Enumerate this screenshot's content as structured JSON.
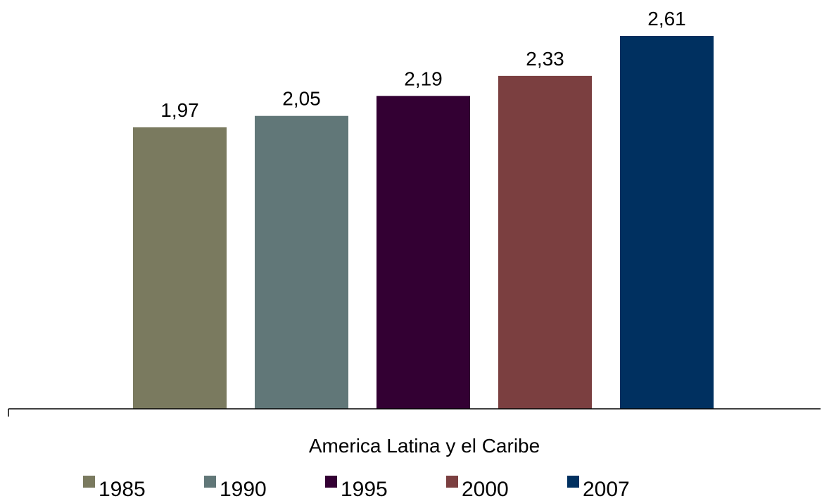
{
  "chart_data": {
    "type": "bar",
    "categories": [
      "America Latina y el Caribe"
    ],
    "series": [
      {
        "name": "1985",
        "values": [
          1.97
        ],
        "label": "1,97",
        "color": "#7a7a5f"
      },
      {
        "name": "1990",
        "values": [
          2.05
        ],
        "label": "2,05",
        "color": "#617778"
      },
      {
        "name": "1995",
        "values": [
          2.19
        ],
        "label": "2,19",
        "color": "#330033"
      },
      {
        "name": "2000",
        "values": [
          2.33
        ],
        "label": "2,33",
        "color": "#7b3f40"
      },
      {
        "name": "2007",
        "values": [
          2.61
        ],
        "label": "2,61",
        "color": "#003060"
      }
    ],
    "title": "",
    "xlabel": "",
    "ylabel": "",
    "ylim": [
      0,
      2.61
    ],
    "grid": false,
    "legend_position": "bottom"
  }
}
